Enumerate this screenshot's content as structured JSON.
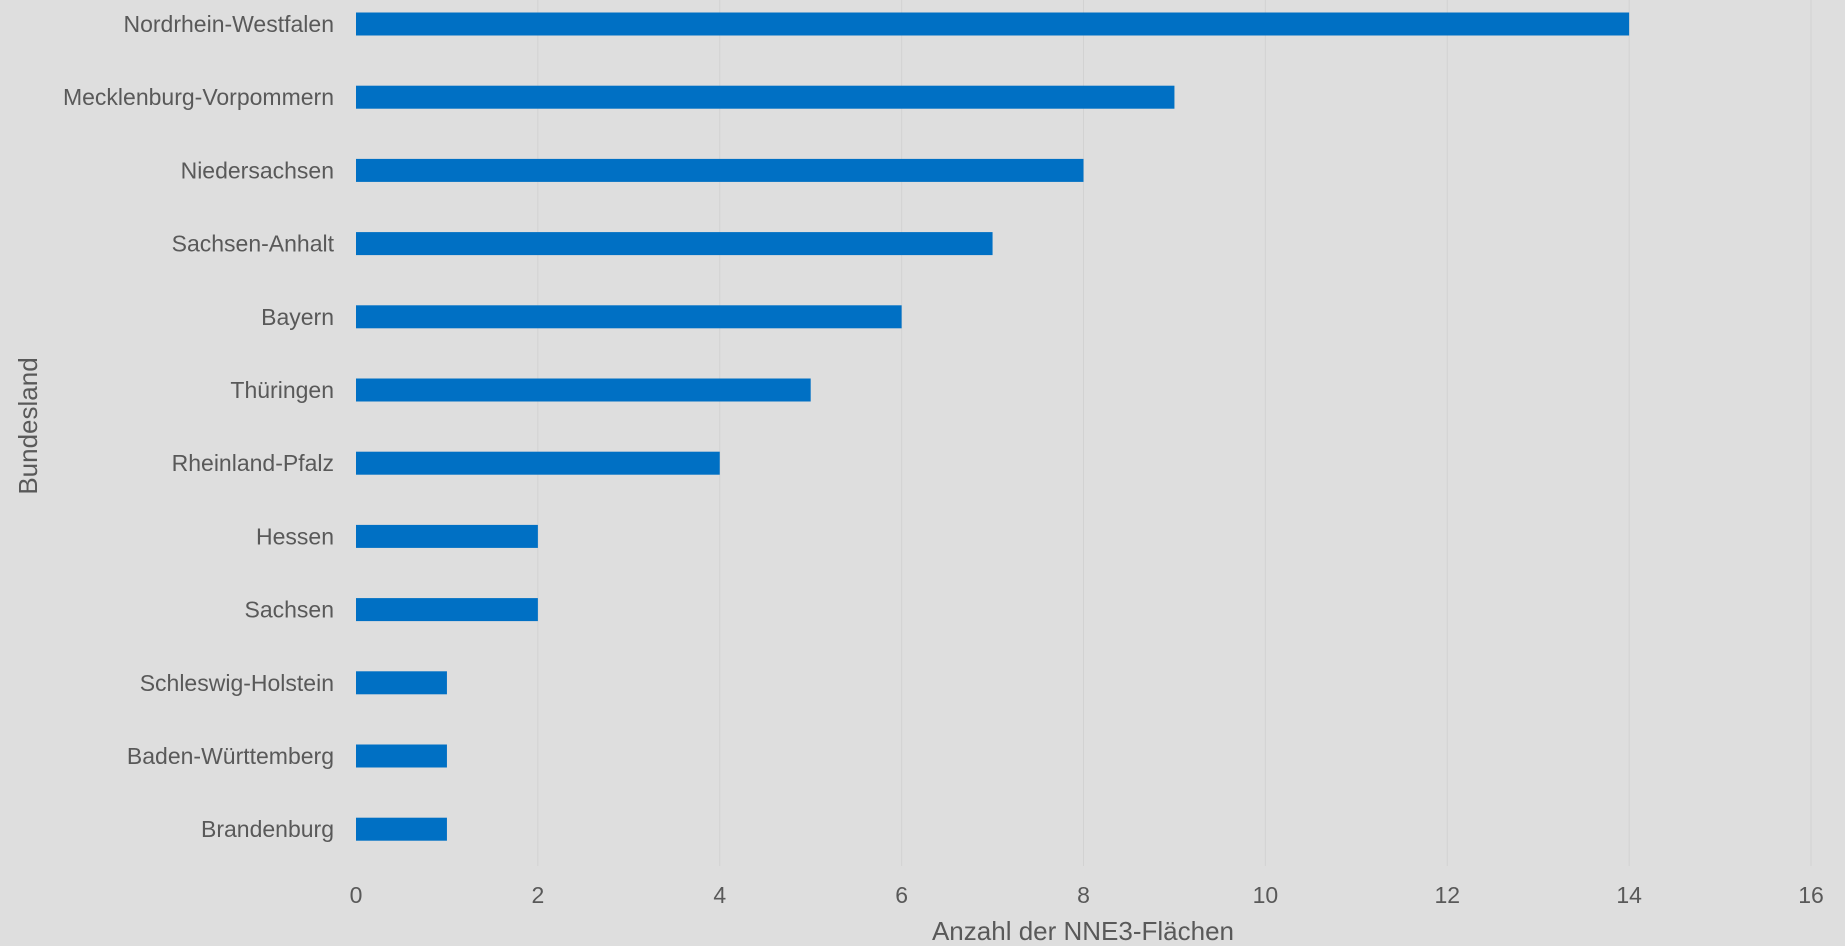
{
  "chart_data": {
    "type": "bar",
    "orientation": "horizontal",
    "title": "",
    "xlabel": "Anzahl der  NNE3-Flächen",
    "ylabel": "Bundesland",
    "categories": [
      "Nordrhein-Westfalen",
      "Mecklenburg-Vorpommern",
      "Niedersachsen",
      "Sachsen-Anhalt",
      "Bayern",
      "Thüringen",
      "Rheinland-Pfalz",
      "Hessen",
      "Sachsen",
      "Schleswig-Holstein",
      "Baden-Württemberg",
      "Brandenburg"
    ],
    "values": [
      14,
      9,
      8,
      7,
      6,
      5,
      4,
      2,
      2,
      1,
      1,
      1
    ],
    "xlim": [
      0,
      16
    ],
    "xticks": [
      0,
      2,
      4,
      6,
      8,
      10,
      12,
      14,
      16
    ],
    "grid": "vertical",
    "legend": "none",
    "colors": {
      "bar": "#0070c4",
      "background": "#dedede",
      "text": "#595959",
      "grid": "#d2d2d2"
    }
  }
}
